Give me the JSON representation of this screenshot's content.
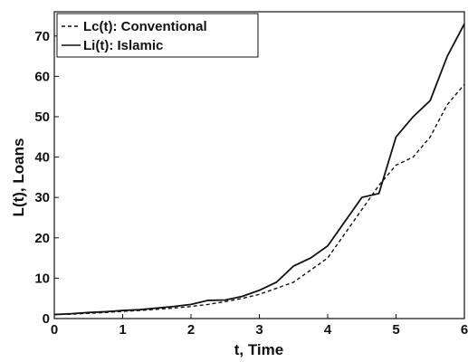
{
  "chart_data": {
    "type": "line",
    "x_label": "t, Time",
    "y_label": "L(t), Loans",
    "x": [
      0,
      0.25,
      0.5,
      0.75,
      1,
      1.25,
      1.5,
      1.75,
      2,
      2.25,
      2.5,
      2.75,
      3,
      3.25,
      3.5,
      3.75,
      4,
      4.25,
      4.5,
      4.75,
      5,
      5.25,
      5.5,
      5.75,
      6
    ],
    "series": [
      {
        "name": "Lc(t): Conventional",
        "color": "#111111",
        "dash": true,
        "values": [
          1,
          1.1,
          1.3,
          1.5,
          1.8,
          2,
          2.3,
          2.6,
          3,
          3.5,
          4.2,
          5,
          6,
          7.5,
          9,
          12,
          15,
          21,
          27,
          33,
          38,
          40,
          45,
          53,
          58
        ]
      },
      {
        "name": "Li(t): Islamic",
        "color": "#111111",
        "dash": false,
        "values": [
          1,
          1.2,
          1.5,
          1.7,
          2,
          2.2,
          2.6,
          3,
          3.5,
          4.5,
          4.6,
          5.5,
          7,
          9,
          13,
          15,
          18,
          24,
          30,
          31,
          45,
          50,
          54,
          65,
          73
        ]
      }
    ],
    "xlim": [
      0,
      6
    ],
    "xticks": [
      0,
      1,
      2,
      3,
      4,
      5,
      6
    ],
    "ylim": [
      0,
      76
    ],
    "yticks": [
      0,
      10,
      20,
      30,
      40,
      50,
      60,
      70
    ],
    "legend": "upper-left"
  }
}
